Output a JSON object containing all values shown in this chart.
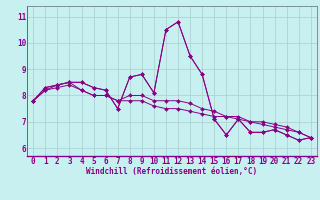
{
  "xlabel": "Windchill (Refroidissement éolien,°C)",
  "xlim": [
    -0.5,
    23.5
  ],
  "ylim": [
    5.7,
    11.4
  ],
  "yticks": [
    6,
    7,
    8,
    9,
    10,
    11
  ],
  "xticks": [
    0,
    1,
    2,
    3,
    4,
    5,
    6,
    7,
    8,
    9,
    10,
    11,
    12,
    13,
    14,
    15,
    16,
    17,
    18,
    19,
    20,
    21,
    22,
    23
  ],
  "line_color": "#880088",
  "bg_color": "#c8f0f0",
  "grid_color": "#aacccc",
  "series": [
    [
      7.8,
      8.3,
      8.4,
      8.5,
      8.5,
      8.3,
      8.2,
      7.5,
      8.7,
      8.8,
      8.1,
      10.5,
      10.8,
      9.5,
      8.8,
      7.1,
      6.5,
      7.1,
      6.6,
      6.6,
      6.7,
      6.5,
      6.3,
      6.4
    ],
    [
      7.8,
      8.3,
      8.4,
      8.5,
      8.5,
      8.3,
      8.2,
      7.5,
      8.7,
      8.8,
      8.1,
      10.5,
      10.8,
      9.5,
      8.8,
      7.1,
      6.5,
      7.1,
      6.6,
      6.6,
      6.7,
      6.5,
      6.3,
      6.4
    ],
    [
      7.8,
      8.2,
      8.4,
      8.5,
      8.2,
      8.0,
      8.0,
      7.8,
      8.0,
      8.0,
      7.8,
      7.8,
      7.8,
      7.7,
      7.5,
      7.4,
      7.2,
      7.2,
      7.0,
      7.0,
      6.9,
      6.8,
      6.6,
      6.4
    ],
    [
      7.8,
      8.2,
      8.3,
      8.4,
      8.2,
      8.0,
      8.0,
      7.8,
      7.8,
      7.8,
      7.6,
      7.5,
      7.5,
      7.4,
      7.3,
      7.2,
      7.2,
      7.1,
      7.0,
      6.9,
      6.8,
      6.7,
      6.6,
      6.4
    ]
  ],
  "tick_fontsize": 5.5,
  "xlabel_fontsize": 5.5
}
